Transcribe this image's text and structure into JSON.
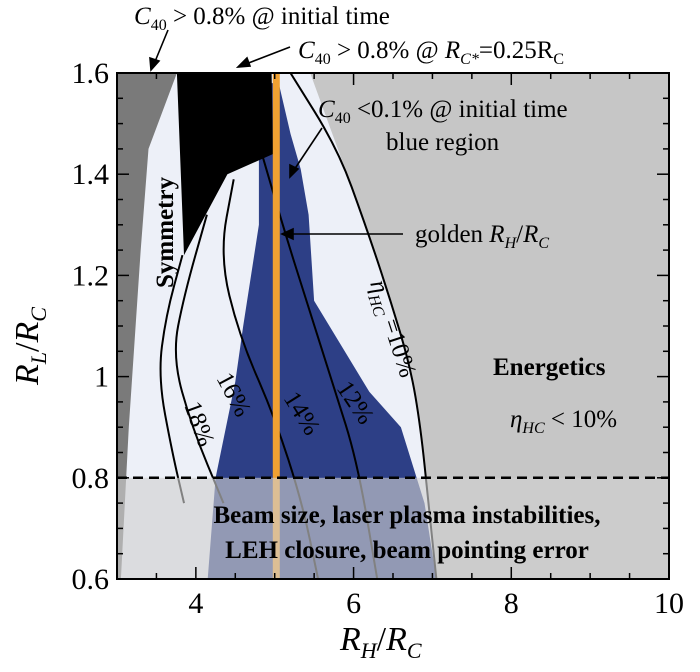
{
  "chart_data": {
    "type": "area",
    "title": "",
    "xlabel": {
      "base": "R",
      "sub": "H",
      "sep": "/",
      "base2": "R",
      "sub2": "C"
    },
    "ylabel": {
      "base": "R",
      "sub": "L",
      "sep": "/",
      "base2": "R",
      "sub2": "C"
    },
    "xlim": [
      3,
      10
    ],
    "ylim": [
      0.6,
      1.6
    ],
    "x_ticks": [
      4,
      6,
      8,
      10
    ],
    "x_tick_labels": [
      "4",
      "6",
      "8",
      "10"
    ],
    "y_ticks": [
      0.6,
      0.8,
      1.0,
      1.2,
      1.4,
      1.6
    ],
    "y_tick_labels": [
      "0.6",
      "0.8",
      "1",
      "1.2",
      "1.4",
      "1.6"
    ],
    "colors": {
      "symmetry": "#7a7a7a",
      "energetics": "#c6c6c6",
      "black_region": "#000000",
      "allowed": "#edf0f8",
      "blue_region": "#2d3f86",
      "golden_line": "#f0a132",
      "beam_band": "#d0d0d0"
    },
    "regions": [
      {
        "name": "symmetry",
        "polygon": [
          [
            3,
            0.6
          ],
          [
            3,
            1.6
          ],
          [
            3.76,
            1.6
          ],
          [
            3.4,
            1.45
          ],
          [
            3.3,
            1.25
          ],
          [
            3.15,
            0.9
          ],
          [
            3.05,
            0.6
          ]
        ]
      },
      {
        "name": "c40-above-0.8pct-initial",
        "polygon": [
          [
            3.76,
            1.6
          ],
          [
            4.96,
            1.6
          ],
          [
            4.98,
            1.44
          ],
          [
            4.4,
            1.4
          ],
          [
            3.85,
            1.24
          ],
          [
            3.76,
            1.6
          ]
        ]
      },
      {
        "name": "blue-region",
        "polygon": [
          [
            4.9,
            1.58
          ],
          [
            5.05,
            1.58
          ],
          [
            5.2,
            1.48
          ],
          [
            5.33,
            1.41
          ],
          [
            5.43,
            1.32
          ],
          [
            5.5,
            1.15
          ],
          [
            5.85,
            1.06
          ],
          [
            6.2,
            0.97
          ],
          [
            6.6,
            0.9
          ],
          [
            6.9,
            0.75
          ],
          [
            7.05,
            0.6
          ],
          [
            4.15,
            0.6
          ],
          [
            4.25,
            0.8
          ],
          [
            4.5,
            0.99
          ],
          [
            4.6,
            1.1
          ],
          [
            4.8,
            1.3
          ],
          [
            4.8,
            1.45
          ]
        ]
      },
      {
        "name": "energetics",
        "polygon": [
          [
            5.2,
            1.6
          ],
          [
            10,
            1.6
          ],
          [
            10,
            0.6
          ],
          [
            7.05,
            0.6
          ],
          [
            7.0,
            0.68
          ],
          [
            6.95,
            0.75
          ],
          [
            6.85,
            0.9
          ],
          [
            6.72,
            1.02
          ],
          [
            6.45,
            1.16
          ],
          [
            6.15,
            1.3
          ],
          [
            5.8,
            1.45
          ],
          [
            5.45,
            1.6
          ]
        ]
      },
      {
        "name": "beam-size-band",
        "range_y": [
          0.6,
          0.8
        ]
      }
    ],
    "golden_line": {
      "x": 5.02,
      "label": {
        "base": "golden ",
        "var": "R",
        "sub": "H",
        "sep": "/",
        "var2": "R",
        "sub2": "C"
      }
    },
    "dashed_line_y": 0.8,
    "contours": [
      {
        "label": "18%",
        "points": [
          [
            3.83,
            1.24
          ],
          [
            3.62,
            1.12
          ],
          [
            3.52,
            1.0
          ],
          [
            3.7,
            0.85
          ],
          [
            3.85,
            0.75
          ]
        ]
      },
      {
        "label": "16%",
        "points": [
          [
            4.14,
            1.32
          ],
          [
            3.85,
            1.16
          ],
          [
            3.7,
            1.04
          ],
          [
            3.95,
            0.9
          ],
          [
            4.35,
            0.75
          ]
        ]
      },
      {
        "label": "14%",
        "points": [
          [
            4.48,
            1.39
          ],
          [
            4.3,
            1.24
          ],
          [
            4.55,
            1.08
          ],
          [
            5.0,
            0.92
          ],
          [
            5.35,
            0.75
          ],
          [
            5.55,
            0.6
          ]
        ]
      },
      {
        "label": "12%",
        "points": [
          [
            4.8,
            1.46
          ],
          [
            5.1,
            1.3
          ],
          [
            5.4,
            1.15
          ],
          [
            5.75,
            0.98
          ],
          [
            6.05,
            0.83
          ],
          [
            6.3,
            0.6
          ]
        ]
      },
      {
        "label": "η_HC =10%",
        "points": [
          [
            5.2,
            1.6
          ],
          [
            5.8,
            1.45
          ],
          [
            6.15,
            1.3
          ],
          [
            6.45,
            1.16
          ],
          [
            6.72,
            1.02
          ],
          [
            6.85,
            0.9
          ],
          [
            6.95,
            0.75
          ],
          [
            7.05,
            0.6
          ]
        ]
      }
    ]
  },
  "annotations": {
    "c40_initial": {
      "var": "C",
      "sub": "40",
      "rest": " > 0.8% @ initial time"
    },
    "c40_rcstar": {
      "var": "C",
      "sub": "40",
      "rest1": " > 0.8% @ ",
      "var2": "R",
      "sub2": "C*",
      "rest2": "=0.25R",
      "sub3": "C"
    },
    "c40_blue_line1": {
      "var": "C",
      "sub": "40",
      "rest": " <0.1% @ initial time"
    },
    "c40_blue_line2": "blue region",
    "symmetry": "Symmetry",
    "energetics": "Energetics",
    "eta_hc_lt": {
      "var": "η",
      "sub": "HC",
      "rest": " < 10%"
    },
    "eta_hc_eq": {
      "var": "η",
      "sub": "HC",
      "rest": " =10%"
    },
    "beam_line1": "Beam size, laser plasma instabilities,",
    "beam_line2": "LEH closure, beam pointing error",
    "contour_18": "18%",
    "contour_16": "16%",
    "contour_14": "14%",
    "contour_12": "12%"
  }
}
